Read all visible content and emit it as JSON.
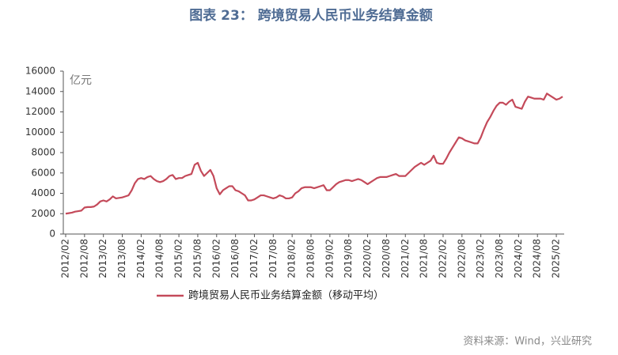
{
  "chart_data": {
    "type": "line",
    "title": "图表 23：  跨境贸易人民币业务结算金额",
    "y_unit_label": "亿元",
    "source": "资料来源：Wind，兴业研究",
    "ylim": [
      0,
      16000
    ],
    "yticks": [
      0,
      2000,
      4000,
      6000,
      8000,
      10000,
      12000,
      14000,
      16000
    ],
    "grid": false,
    "legend": "bottom",
    "categories": [
      "2012/02",
      null,
      null,
      null,
      null,
      null,
      "2012/08",
      null,
      null,
      null,
      null,
      null,
      "2013/02",
      null,
      null,
      null,
      null,
      null,
      "2013/08",
      null,
      null,
      null,
      null,
      null,
      "2014/02",
      null,
      null,
      null,
      null,
      null,
      "2014/08",
      null,
      null,
      null,
      null,
      null,
      "2015/02",
      null,
      null,
      null,
      null,
      null,
      "2015/08",
      null,
      null,
      null,
      null,
      null,
      "2016/02",
      null,
      null,
      null,
      null,
      null,
      "2016/08",
      null,
      null,
      null,
      null,
      null,
      "2017/02",
      null,
      null,
      null,
      null,
      null,
      "2017/08",
      null,
      null,
      null,
      null,
      null,
      "2018/02",
      null,
      null,
      null,
      null,
      null,
      "2018/08",
      null,
      null,
      null,
      null,
      null,
      "2019/02",
      null,
      null,
      null,
      null,
      null,
      "2019/08",
      null,
      null,
      null,
      null,
      null,
      "2020/02",
      null,
      null,
      null,
      null,
      null,
      "2020/08",
      null,
      null,
      null,
      null,
      null,
      "2021/02",
      null,
      null,
      null,
      null,
      null,
      "2021/08",
      null,
      null,
      null,
      null,
      null,
      "2022/02",
      null,
      null,
      null,
      null,
      null,
      "2022/08",
      null,
      null,
      null,
      null,
      null,
      "2023/02",
      null,
      null,
      null,
      null,
      null,
      "2023/08",
      null,
      null,
      null,
      null,
      null,
      "2024/02",
      null,
      null,
      null,
      null,
      null,
      "2024/08",
      null,
      null,
      null,
      null,
      null,
      "2025/02",
      null,
      null
    ],
    "series": [
      {
        "name": "跨境贸易人民币业务结算金额（移动平均）",
        "color": "#c44a5a",
        "values": [
          2000,
          2050,
          2100,
          2200,
          2250,
          2300,
          2600,
          2650,
          2650,
          2700,
          2900,
          3200,
          3300,
          3200,
          3400,
          3700,
          3500,
          3550,
          3600,
          3700,
          3800,
          4300,
          5000,
          5400,
          5500,
          5400,
          5600,
          5700,
          5400,
          5200,
          5100,
          5200,
          5400,
          5700,
          5800,
          5400,
          5500,
          5500,
          5700,
          5800,
          5900,
          6800,
          7000,
          6200,
          5700,
          6000,
          6300,
          5700,
          4500,
          3900,
          4300,
          4500,
          4700,
          4700,
          4300,
          4200,
          4000,
          3800,
          3300,
          3300,
          3400,
          3600,
          3800,
          3800,
          3700,
          3600,
          3500,
          3600,
          3800,
          3700,
          3500,
          3500,
          3600,
          4000,
          4200,
          4500,
          4600,
          4600,
          4600,
          4500,
          4600,
          4700,
          4800,
          4300,
          4300,
          4600,
          4900,
          5100,
          5200,
          5300,
          5300,
          5200,
          5300,
          5400,
          5300,
          5100,
          4900,
          5100,
          5300,
          5500,
          5600,
          5600,
          5600,
          5700,
          5800,
          5900,
          5700,
          5700,
          5700,
          6000,
          6300,
          6600,
          6800,
          7000,
          6800,
          7000,
          7200,
          7700,
          7000,
          6900,
          6900,
          7400,
          8000,
          8500,
          9000,
          9500,
          9400,
          9200,
          9100,
          9000,
          8900,
          8900,
          9500,
          10300,
          11000,
          11500,
          12100,
          12600,
          12900,
          12900,
          12700,
          13000,
          13200,
          12500,
          12400,
          12300,
          13000,
          13500,
          13400,
          13300,
          13300,
          13300,
          13200,
          13800,
          13600,
          13400,
          13200,
          13300,
          13500
        ]
      }
    ]
  }
}
